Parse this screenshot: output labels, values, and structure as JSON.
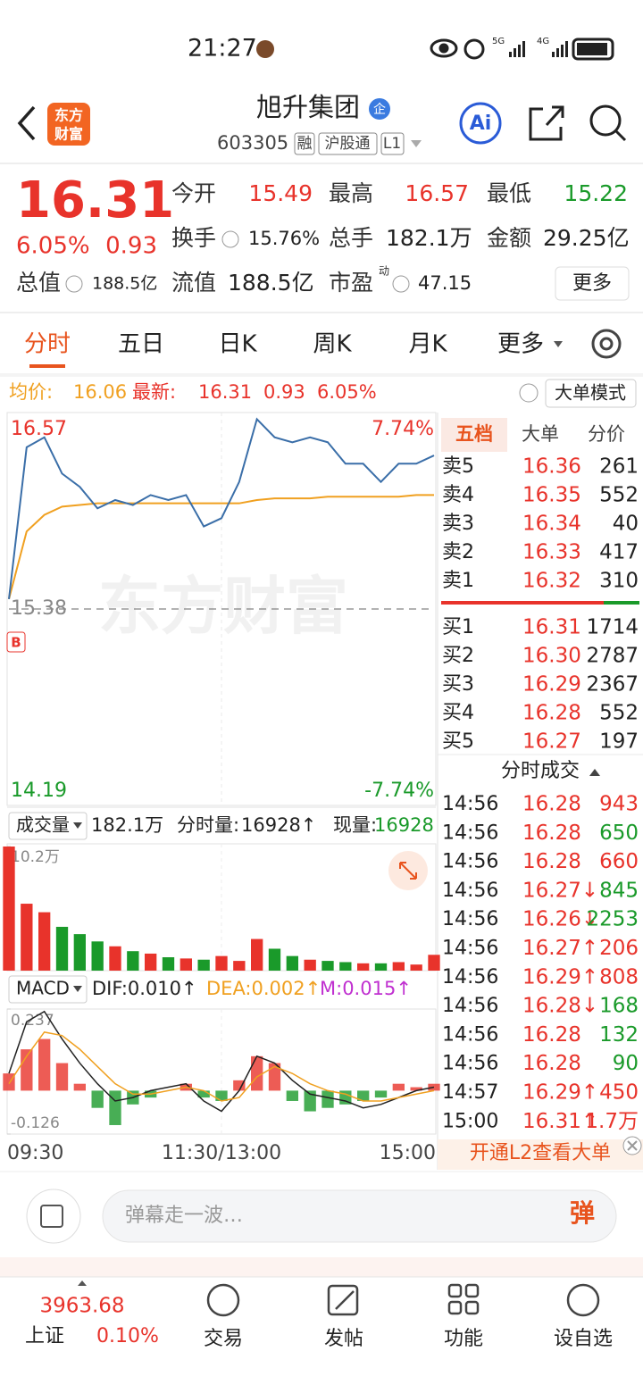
{
  "status_bar": {
    "time": "21:27",
    "network_labels": [
      "5G",
      "4G"
    ]
  },
  "header": {
    "logo": [
      "东方",
      "财富"
    ],
    "title": "旭升集团",
    "badge": "企",
    "code": "603305",
    "tags": [
      "融",
      "沪股通",
      "L1"
    ],
    "ai_button": "Ai"
  },
  "quote": {
    "price": "16.31",
    "change_pct": "6.05%",
    "change": "0.93",
    "fields": [
      {
        "label": "今开",
        "value": "15.49"
      },
      {
        "label": "最高",
        "value": "16.57"
      },
      {
        "label": "最低",
        "value": "15.22"
      },
      {
        "label": "换手",
        "value": "15.76%"
      },
      {
        "label": "总手",
        "value": "182.1万"
      },
      {
        "label": "金额",
        "value": "29.25亿"
      },
      {
        "label": "总值",
        "value": "188.5亿"
      },
      {
        "label": "流值",
        "value": "188.5亿"
      },
      {
        "label": "市盈",
        "sup": "动",
        "value": "47.15"
      }
    ],
    "more_button": "更多"
  },
  "tabs": [
    "分时",
    "五日",
    "日K",
    "周K",
    "月K",
    "更多"
  ],
  "info_bar": {
    "avg_label": "均价:",
    "avg": "16.06",
    "last_label": "最新:",
    "last": "16.31",
    "change": "0.93",
    "change_pct": "6.05%",
    "mode_button": "大单模式"
  },
  "chart_data": {
    "type": "line",
    "watermark": "东方财富",
    "marker": "B",
    "x": [
      0,
      10,
      20,
      30,
      40,
      50,
      60,
      70,
      80,
      90,
      100,
      110,
      120,
      130,
      140,
      150,
      160,
      170,
      180,
      190,
      200,
      210,
      220,
      230,
      240
    ],
    "xlim": [
      0,
      240
    ],
    "xticks": [
      {
        "value": 0,
        "label": "09:30"
      },
      {
        "value": 120,
        "label": "11:30/13:00"
      },
      {
        "value": 240,
        "label": "15:00"
      }
    ],
    "ylim": [
      14.19,
      16.57
    ],
    "yticks": [
      14.19,
      15.38,
      16.57
    ],
    "pct_labels": [
      "7.74%",
      "-7.74%"
    ],
    "grid": true,
    "series": [
      {
        "color": "#3a6ea8",
        "values": [
          15.44,
          16.36,
          16.42,
          16.2,
          16.12,
          15.99,
          16.04,
          16.01,
          16.07,
          16.04,
          16.07,
          15.88,
          15.93,
          16.15,
          16.53,
          16.42,
          16.39,
          16.42,
          16.39,
          16.26,
          16.26,
          16.15,
          16.26,
          16.26,
          16.31
        ]
      },
      {
        "color": "#f0a020",
        "values": [
          15.44,
          15.85,
          15.95,
          16.0,
          16.01,
          16.02,
          16.02,
          16.02,
          16.02,
          16.02,
          16.02,
          16.02,
          16.02,
          16.02,
          16.04,
          16.05,
          16.05,
          16.05,
          16.06,
          16.06,
          16.06,
          16.06,
          16.06,
          16.07,
          16.07
        ]
      }
    ]
  },
  "volume_chart": {
    "type": "bar",
    "menu": "成交量",
    "total": "182.1万",
    "minute_label": "分时量:",
    "minute": "16928↑",
    "current_label": "现量:",
    "current": "16928",
    "values": [
      10.2,
      5.5,
      4.8,
      3.6,
      3.0,
      2.4,
      2.0,
      1.6,
      1.4,
      1.1,
      1.0,
      0.9,
      1.2,
      0.8,
      2.6,
      1.8,
      1.2,
      0.9,
      0.8,
      0.7,
      0.6,
      0.6,
      0.7,
      0.5,
      1.3
    ],
    "ylim": [
      0,
      10.2
    ],
    "yticks": [
      {
        "value": 10.2,
        "label": "10.2万"
      }
    ],
    "colors": [
      "#e8332b",
      "#1a9a2a"
    ]
  },
  "macd_chart": {
    "type": "bar",
    "menu": "MACD",
    "dif_label": "DIF:0.010↑",
    "dea_label": "DEA:0.002↑",
    "m_label": "M:0.015↑",
    "values": [
      0.05,
      0.12,
      0.15,
      0.08,
      0.02,
      -0.05,
      -0.1,
      -0.04,
      -0.02,
      0.0,
      0.02,
      -0.02,
      -0.03,
      0.03,
      0.1,
      0.08,
      -0.03,
      -0.06,
      -0.05,
      -0.04,
      -0.03,
      -0.02,
      0.02,
      0.01,
      0.02
    ],
    "dif": [
      0.05,
      0.2,
      0.23,
      0.15,
      0.08,
      0.02,
      -0.03,
      -0.02,
      0.0,
      0.01,
      0.02,
      -0.03,
      -0.06,
      0.0,
      0.1,
      0.08,
      0.03,
      -0.01,
      -0.02,
      -0.03,
      -0.05,
      -0.04,
      -0.02,
      0.0,
      0.01
    ],
    "dea": [
      0.02,
      0.1,
      0.17,
      0.16,
      0.12,
      0.07,
      0.02,
      -0.01,
      -0.01,
      0.0,
      0.01,
      0.0,
      -0.03,
      -0.02,
      0.04,
      0.07,
      0.05,
      0.02,
      0.0,
      -0.01,
      -0.03,
      -0.03,
      -0.02,
      -0.01,
      0.0
    ],
    "ylim": [
      -0.126,
      0.237
    ],
    "yticks": [
      -0.126,
      0.237
    ],
    "colors": [
      "#e8332b",
      "#1a9a2a",
      "#222222",
      "#f0a020"
    ]
  },
  "order_book": {
    "tabs": [
      "五档",
      "大单",
      "分价"
    ],
    "asks": [
      [
        "卖5",
        "16.36",
        "261"
      ],
      [
        "卖4",
        "16.35",
        "552"
      ],
      [
        "卖3",
        "16.34",
        "40"
      ],
      [
        "卖2",
        "16.33",
        "417"
      ],
      [
        "卖1",
        "16.32",
        "310"
      ]
    ],
    "bids": [
      [
        "买1",
        "16.31",
        "1714"
      ],
      [
        "买2",
        "16.30",
        "2787"
      ],
      [
        "买3",
        "16.29",
        "2367"
      ],
      [
        "买4",
        "16.28",
        "552"
      ],
      [
        "买5",
        "16.27",
        "197"
      ]
    ]
  },
  "trades": {
    "title": "分时成交",
    "rows": [
      [
        "14:56",
        "16.28",
        "943",
        "#e8332b"
      ],
      [
        "14:56",
        "16.28",
        "650",
        "#1a9a2a"
      ],
      [
        "14:56",
        "16.28",
        "660",
        "#e8332b"
      ],
      [
        "14:56",
        "16.27↓",
        "845",
        "#1a9a2a"
      ],
      [
        "14:56",
        "16.26↓",
        "2253",
        "#1a9a2a"
      ],
      [
        "14:56",
        "16.27↑",
        "206",
        "#e8332b"
      ],
      [
        "14:56",
        "16.29↑",
        "808",
        "#e8332b"
      ],
      [
        "14:56",
        "16.28↓",
        "168",
        "#1a9a2a"
      ],
      [
        "14:56",
        "16.28",
        "132",
        "#1a9a2a"
      ],
      [
        "14:56",
        "16.28",
        "90",
        "#1a9a2a"
      ],
      [
        "14:57",
        "16.29↑",
        "450",
        "#e8332b"
      ],
      [
        "15:00",
        "16.31↑",
        "1.7万",
        "#e8332b"
      ]
    ],
    "footer": "开通L2查看大单"
  },
  "comment_bar": {
    "placeholder": "弹幕走一波…",
    "button": "弹"
  },
  "bottom_nav": {
    "index_value": "3963.68",
    "index_name": "上证",
    "index_pct": "0.10%",
    "items": [
      "交易",
      "发帖",
      "功能",
      "设自选"
    ]
  }
}
